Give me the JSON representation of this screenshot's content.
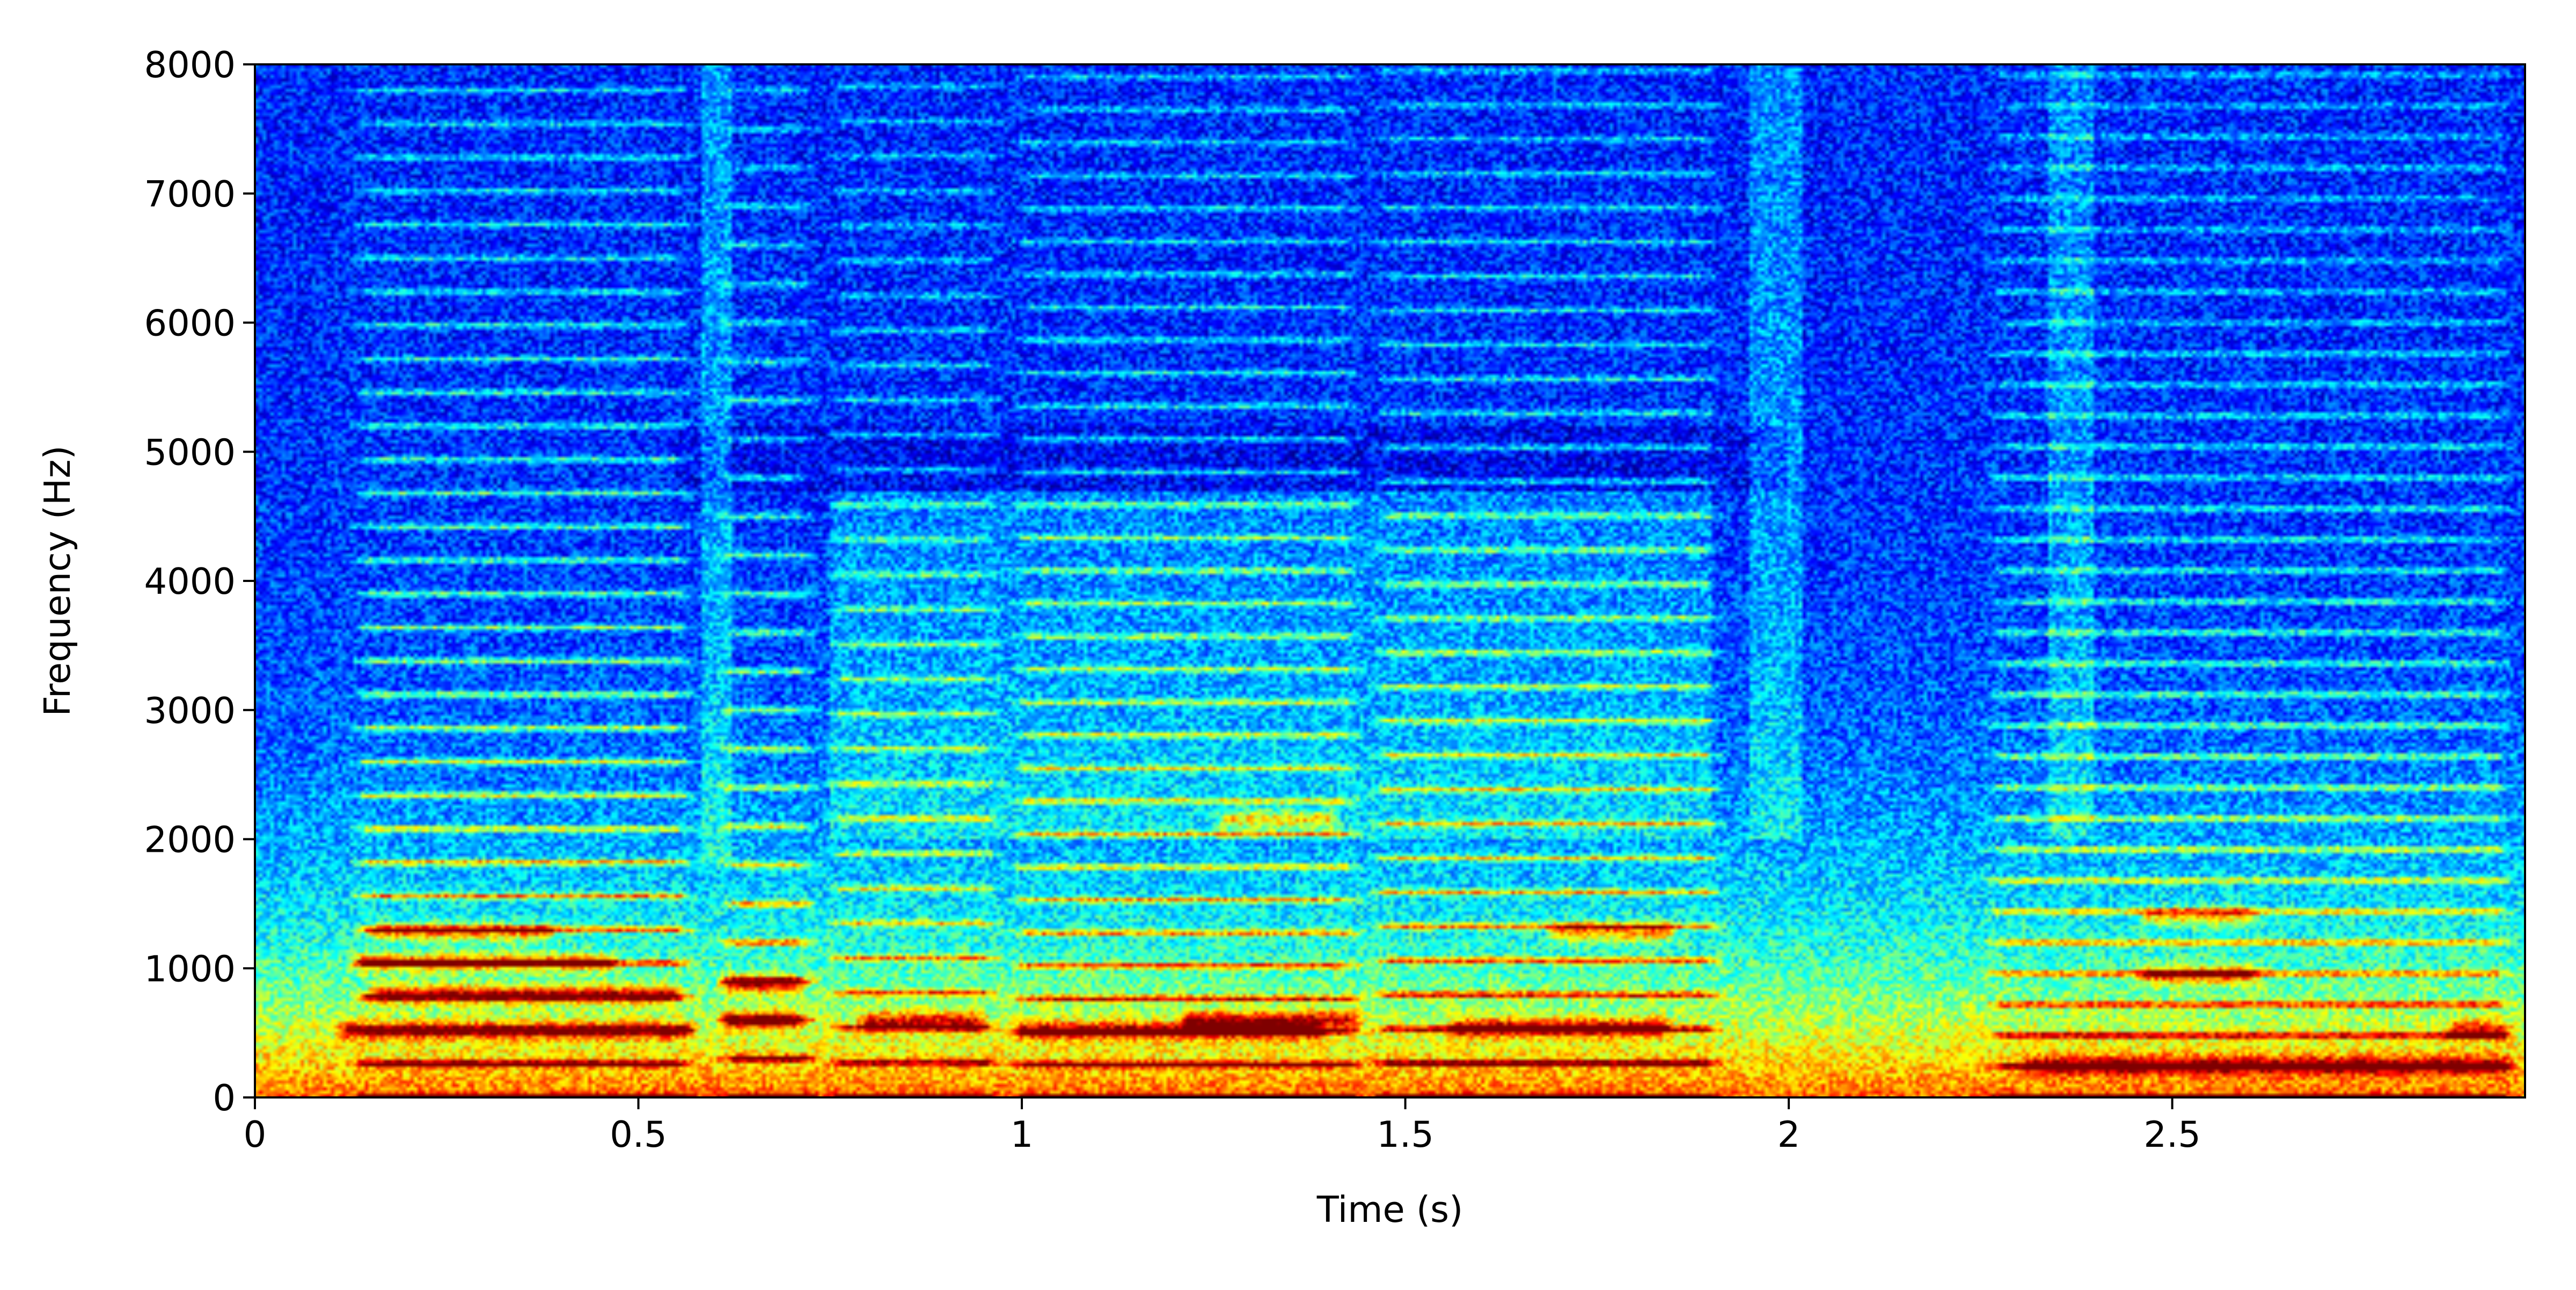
{
  "chart_data": {
    "type": "heatmap",
    "title": "",
    "xlabel": "Time (s)",
    "ylabel": "Frequency (Hz)",
    "xlim": [
      0,
      2.96
    ],
    "ylim": [
      0,
      8000
    ],
    "x_ticks": [
      0,
      0.5,
      1,
      1.5,
      2,
      2.5
    ],
    "x_tick_labels": [
      "0",
      "0.5",
      "1",
      "1.5",
      "2",
      "2.5"
    ],
    "y_ticks": [
      0,
      1000,
      2000,
      3000,
      4000,
      5000,
      6000,
      7000,
      8000
    ],
    "y_tick_labels": [
      "0",
      "1000",
      "2000",
      "3000",
      "4000",
      "5000",
      "6000",
      "7000",
      "8000"
    ],
    "colormap": "jet",
    "colormap_colors": [
      "#00007f",
      "#0000ff",
      "#007fff",
      "#00ffff",
      "#7fff7f",
      "#ffff00",
      "#ff7f00",
      "#ff0000",
      "#7f0000"
    ],
    "colorbar": false,
    "grid": false,
    "segments": [
      {
        "t0": 0.12,
        "t1": 0.58,
        "kind": "voiced",
        "f0_hz": 260,
        "strength": 0.95
      },
      {
        "t0": 0.6,
        "t1": 0.74,
        "kind": "voiced",
        "f0_hz": 300,
        "strength": 0.85
      },
      {
        "t0": 0.74,
        "t1": 0.98,
        "kind": "voiced",
        "f0_hz": 270,
        "strength": 0.7
      },
      {
        "t0": 0.98,
        "t1": 1.45,
        "kind": "voiced",
        "f0_hz": 255,
        "strength": 0.85
      },
      {
        "t0": 1.45,
        "t1": 1.92,
        "kind": "voiced",
        "f0_hz": 265,
        "strength": 0.85
      },
      {
        "t0": 2.25,
        "t1": 2.95,
        "kind": "voiced",
        "f0_hz": 240,
        "strength": 0.8
      }
    ],
    "formants": [
      {
        "t0": 0.14,
        "t1": 0.56,
        "freq_hz": 800,
        "strength": 1.0
      },
      {
        "t0": 0.12,
        "t1": 0.48,
        "freq_hz": 1050,
        "strength": 0.9
      },
      {
        "t0": 0.14,
        "t1": 0.4,
        "freq_hz": 1280,
        "strength": 0.8
      },
      {
        "t0": 0.1,
        "t1": 0.58,
        "freq_hz": 520,
        "strength": 0.85
      },
      {
        "t0": 0.6,
        "t1": 0.72,
        "freq_hz": 880,
        "strength": 1.0
      },
      {
        "t0": 0.6,
        "t1": 0.72,
        "freq_hz": 600,
        "strength": 0.95
      },
      {
        "t0": 0.78,
        "t1": 0.96,
        "freq_hz": 590,
        "strength": 0.9
      },
      {
        "t0": 0.98,
        "t1": 1.4,
        "freq_hz": 520,
        "strength": 0.95
      },
      {
        "t0": 1.2,
        "t1": 1.45,
        "freq_hz": 600,
        "strength": 0.9
      },
      {
        "t0": 1.55,
        "t1": 1.85,
        "freq_hz": 540,
        "strength": 1.0
      },
      {
        "t0": 1.68,
        "t1": 1.86,
        "freq_hz": 1280,
        "strength": 0.85
      },
      {
        "t0": 1.25,
        "t1": 1.42,
        "freq_hz": 2150,
        "strength": 0.8
      },
      {
        "t0": 2.45,
        "t1": 2.62,
        "freq_hz": 950,
        "strength": 0.9
      },
      {
        "t0": 2.45,
        "t1": 2.62,
        "freq_hz": 1400,
        "strength": 0.75
      },
      {
        "t0": 2.3,
        "t1": 2.95,
        "freq_hz": 250,
        "strength": 0.85
      },
      {
        "t0": 2.85,
        "t1": 2.95,
        "freq_hz": 520,
        "strength": 0.85
      }
    ],
    "fricatives": [
      {
        "t0": 0.58,
        "t1": 0.62,
        "f_low_hz": 1800,
        "strength": 0.5
      },
      {
        "t0": 1.95,
        "t1": 2.02,
        "f_low_hz": 2000,
        "strength": 0.45
      },
      {
        "t0": 2.34,
        "t1": 2.4,
        "f_low_hz": 2000,
        "strength": 0.45
      }
    ]
  }
}
